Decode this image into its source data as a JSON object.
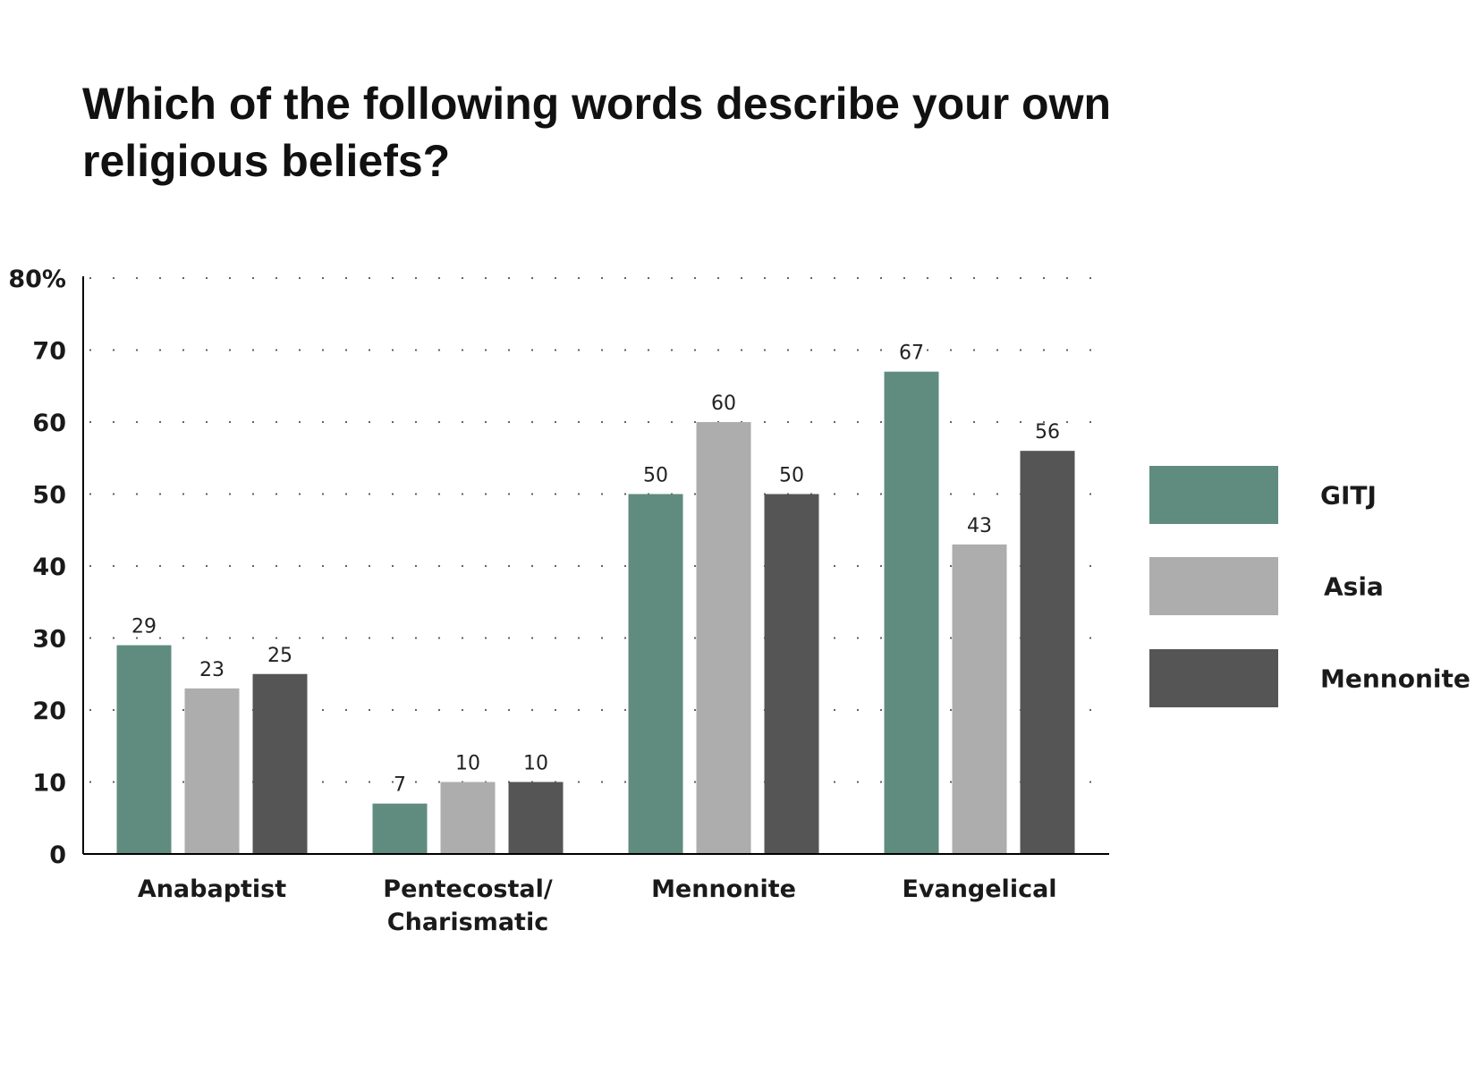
{
  "chart_data": {
    "type": "bar",
    "title": "Which of the following words describe your own religious beliefs?",
    "categories": [
      "Anabaptist",
      "Pentecostal/\nCharismatic",
      "Mennonite",
      "Evangelical"
    ],
    "series": [
      {
        "name": "GITJ",
        "color": "#5f8c7f",
        "values": [
          29,
          7,
          50,
          67
        ]
      },
      {
        "name": "Asia",
        "color": "#adadad",
        "values": [
          23,
          10,
          60,
          43
        ]
      },
      {
        "name": "Mennonite",
        "color": "#555555",
        "values": [
          25,
          10,
          50,
          56
        ]
      }
    ],
    "yticks": [
      "0",
      "10",
      "20",
      "30",
      "40",
      "50",
      "60",
      "70",
      "80%"
    ],
    "ylim": [
      0,
      80
    ],
    "grid": "dotted horizontal",
    "legend": "right"
  }
}
